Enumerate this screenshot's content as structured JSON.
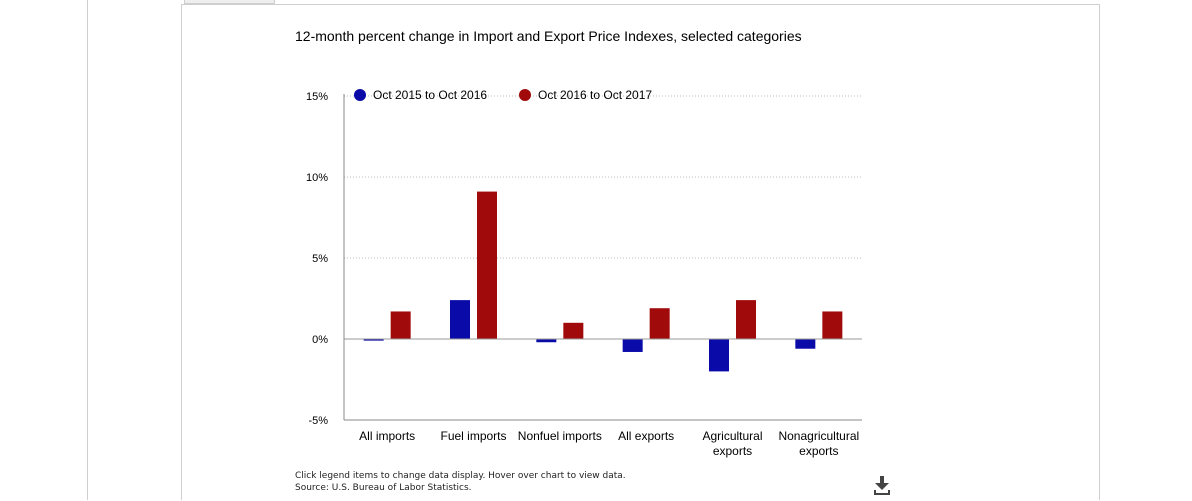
{
  "chart_title": "12-month percent change in Import and Export Price Indexes, selected categories",
  "footer": {
    "note": "Click legend items to change data display. Hover over chart to view data.",
    "source": "Source: U.S. Bureau of Labor Statistics."
  },
  "download_icon": "download-icon",
  "chart_data": {
    "type": "bar",
    "title": "12-month percent change in Import and Export Price Indexes, selected categories",
    "xlabel": "",
    "ylabel": "",
    "ylim": [
      -5,
      15
    ],
    "yticks": [
      -5,
      0,
      5,
      10,
      15
    ],
    "ytick_labels": [
      "-5%",
      "0%",
      "5%",
      "10%",
      "15%"
    ],
    "grid": true,
    "legend_position": "top-left",
    "categories": [
      [
        "All imports"
      ],
      [
        "Fuel imports"
      ],
      [
        "Nonfuel imports"
      ],
      [
        "All exports"
      ],
      [
        "Agricultural",
        "exports"
      ],
      [
        "Nonagricultural",
        "exports"
      ]
    ],
    "series": [
      {
        "name": "Oct 2015 to Oct 2016",
        "color": "#0a0aa8",
        "values": [
          -0.1,
          2.4,
          -0.2,
          -0.8,
          -2.0,
          -0.6
        ]
      },
      {
        "name": "Oct 2016 to Oct 2017",
        "color": "#a00a0a",
        "values": [
          1.7,
          9.1,
          1.0,
          1.9,
          2.4,
          1.7
        ]
      }
    ]
  }
}
